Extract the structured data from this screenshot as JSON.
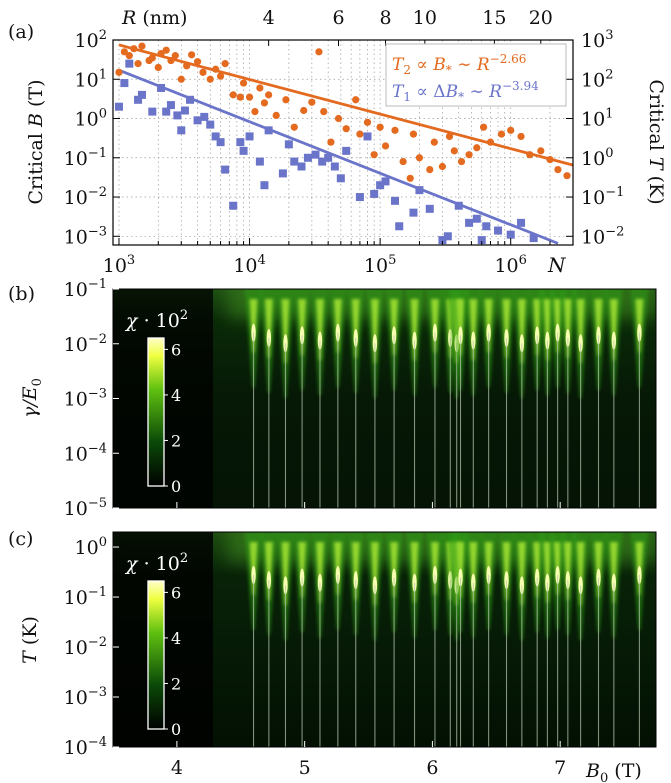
{
  "chart_data": [
    {
      "panel_label": "(a)",
      "type": "scatter",
      "x_scale": "log",
      "y_scale": "log",
      "xlabel": "N",
      "ylabel": "Critical B (T)",
      "y2label": "Critical T (K)",
      "top_axis_label": "R (nm)",
      "xlim": [
        900,
        3000000
      ],
      "ylim": [
        0.0006,
        100
      ],
      "y2lim": [
        0.006,
        1000
      ],
      "x_ticks": [
        {
          "value": 1000,
          "base": "10",
          "exp": "3"
        },
        {
          "value": 10000,
          "base": "10",
          "exp": "4"
        },
        {
          "value": 100000,
          "base": "10",
          "exp": "5"
        },
        {
          "value": 1000000,
          "base": "10",
          "exp": "6"
        }
      ],
      "y_ticks": [
        {
          "value": 0.001,
          "base": "10",
          "exp": "−3"
        },
        {
          "value": 0.01,
          "base": "10",
          "exp": "−2"
        },
        {
          "value": 0.1,
          "base": "10",
          "exp": "−1"
        },
        {
          "value": 1,
          "base": "10",
          "exp": "0"
        },
        {
          "value": 10,
          "base": "10",
          "exp": "1"
        },
        {
          "value": 100,
          "base": "10",
          "exp": "2"
        }
      ],
      "y2_ticks": [
        {
          "value": 0.01,
          "base": "10",
          "exp": "−2"
        },
        {
          "value": 0.1,
          "base": "10",
          "exp": "−1"
        },
        {
          "value": 1,
          "base": "10",
          "exp": "0"
        },
        {
          "value": 10,
          "base": "10",
          "exp": "1"
        },
        {
          "value": 100,
          "base": "10",
          "exp": "2"
        },
        {
          "value": 1000,
          "base": "10",
          "exp": "3"
        }
      ],
      "top_ticks": [
        {
          "label": "4",
          "n_value": 14000
        },
        {
          "label": "6",
          "n_value": 48000
        },
        {
          "label": "8",
          "n_value": 110000
        },
        {
          "label": "10",
          "n_value": 220000
        },
        {
          "label": "15",
          "n_value": 750000
        },
        {
          "label": "20",
          "n_value": 1700000
        }
      ],
      "grid": true,
      "legend_position": "top-right",
      "series": [
        {
          "name": "T2 ∝ B* ∼ R^−2.66",
          "legend": {
            "lhs": "T",
            "lhs_sub": "2",
            "mid": " ∝ B",
            "mid_sub": "*",
            "rhs": " ∼ R",
            "exp": "−2.66"
          },
          "color": "#e36a1f",
          "marker": "circle",
          "fit_line": {
            "x_start": 1000,
            "y_start": 75,
            "x_end": 3000000,
            "y_end": 0.065
          },
          "points": [
            [
              1000,
              15
            ],
            [
              1100,
              50
            ],
            [
              1200,
              40
            ],
            [
              1300,
              60
            ],
            [
              1400,
              25
            ],
            [
              1500,
              70
            ],
            [
              1700,
              30
            ],
            [
              1800,
              35
            ],
            [
              2000,
              20
            ],
            [
              2100,
              45
            ],
            [
              2300,
              55
            ],
            [
              2500,
              30
            ],
            [
              2700,
              40
            ],
            [
              3000,
              10
            ],
            [
              3300,
              22
            ],
            [
              3600,
              42
            ],
            [
              4000,
              28
            ],
            [
              4400,
              15
            ],
            [
              5000,
              10
            ],
            [
              5500,
              18
            ],
            [
              6000,
              12
            ],
            [
              6500,
              25
            ],
            [
              7500,
              4
            ],
            [
              8500,
              3.5
            ],
            [
              9000,
              8
            ],
            [
              10000,
              3.5
            ],
            [
              11000,
              1.5
            ],
            [
              12000,
              6
            ],
            [
              13000,
              2.5
            ],
            [
              14000,
              4
            ],
            [
              16000,
              1.2
            ],
            [
              19000,
              3
            ],
            [
              22000,
              0.6
            ],
            [
              26000,
              1.6
            ],
            [
              30000,
              2.6
            ],
            [
              34000,
              50
            ],
            [
              37000,
              1.5
            ],
            [
              42000,
              0.25
            ],
            [
              48000,
              1
            ],
            [
              55000,
              0.55
            ],
            [
              65000,
              3
            ],
            [
              70000,
              0.4
            ],
            [
              80000,
              0.8
            ],
            [
              90000,
              0.12
            ],
            [
              100000,
              0.6
            ],
            [
              110000,
              0.2
            ],
            [
              130000,
              0.5
            ],
            [
              150000,
              0.08
            ],
            [
              170000,
              0.03
            ],
            [
              180000,
              0.4
            ],
            [
              200000,
              0.1
            ],
            [
              240000,
              0.05
            ],
            [
              260000,
              0.25
            ],
            [
              300000,
              0.06
            ],
            [
              340000,
              0.35
            ],
            [
              370000,
              0.15
            ],
            [
              420000,
              0.08
            ],
            [
              480000,
              0.12
            ],
            [
              550000,
              0.18
            ],
            [
              620000,
              0.6
            ],
            [
              700000,
              0.25
            ],
            [
              850000,
              0.4
            ],
            [
              1000000,
              0.5
            ],
            [
              1200000,
              0.35
            ],
            [
              1400000,
              0.12
            ],
            [
              1700000,
              0.15
            ],
            [
              2000000,
              0.09
            ],
            [
              2300000,
              0.05
            ],
            [
              2700000,
              0.035
            ]
          ]
        },
        {
          "name": "T1 ∝ ΔB* ∼ R^−3.94",
          "legend": {
            "lhs": "T",
            "lhs_sub": "1",
            "mid": " ∝ ΔB",
            "mid_sub": "*",
            "rhs": " ∼ R",
            "exp": "−3.94"
          },
          "color": "#6a74c9",
          "marker": "square",
          "fit_line": {
            "x_start": 1000,
            "y_start": 17,
            "x_end": 2300000,
            "y_end": 0.00066
          },
          "points": [
            [
              1000,
              2
            ],
            [
              1100,
              8
            ],
            [
              1200,
              25
            ],
            [
              1400,
              3
            ],
            [
              1500,
              4
            ],
            [
              1800,
              1.5
            ],
            [
              2100,
              6
            ],
            [
              2300,
              1.5
            ],
            [
              2500,
              2.2
            ],
            [
              2800,
              1.2
            ],
            [
              3000,
              0.5
            ],
            [
              3200,
              1.6
            ],
            [
              3500,
              3
            ],
            [
              4000,
              0.9
            ],
            [
              4500,
              1.1
            ],
            [
              5000,
              0.7
            ],
            [
              5500,
              0.35
            ],
            [
              6000,
              0.25
            ],
            [
              6500,
              0.05
            ],
            [
              7500,
              0.006
            ],
            [
              8500,
              0.25
            ],
            [
              9000,
              0.15
            ],
            [
              10000,
              0.35
            ],
            [
              12000,
              0.08
            ],
            [
              13000,
              0.02
            ],
            [
              14000,
              0.5
            ],
            [
              18000,
              0.04
            ],
            [
              20000,
              0.22
            ],
            [
              22000,
              0.08
            ],
            [
              25000,
              0.06
            ],
            [
              28000,
              0.1
            ],
            [
              32000,
              0.12
            ],
            [
              36000,
              0.08
            ],
            [
              40000,
              0.1
            ],
            [
              45000,
              0.06
            ],
            [
              50000,
              0.03
            ],
            [
              55000,
              0.15
            ],
            [
              70000,
              0.01
            ],
            [
              80000,
              0.35
            ],
            [
              90000,
              0.012
            ],
            [
              100000,
              0.02
            ],
            [
              110000,
              0.025
            ],
            [
              130000,
              0.008
            ],
            [
              140000,
              0.0018
            ],
            [
              180000,
              0.004
            ],
            [
              200000,
              0.015
            ],
            [
              240000,
              0.005
            ],
            [
              300000,
              0.0008
            ],
            [
              330000,
              0.001
            ],
            [
              400000,
              0.006
            ],
            [
              480000,
              0.0022
            ],
            [
              550000,
              0.0028
            ],
            [
              600000,
              0.0008
            ],
            [
              650000,
              0.0018
            ],
            [
              800000,
              0.0014
            ],
            [
              1000000,
              0.0011
            ],
            [
              1200000,
              0.0022
            ],
            [
              1500000,
              0.0009
            ]
          ]
        }
      ]
    },
    {
      "panel_label": "(b)",
      "type": "heatmap",
      "y_scale": "log",
      "ylabel": "γ/E0",
      "ylabel_parts": {
        "base": "γ/E",
        "sub": "0"
      },
      "ylim": [
        1e-05,
        0.1
      ],
      "xlim": [
        3.5,
        7.75
      ],
      "y_ticks": [
        {
          "value": 1e-05,
          "base": "10",
          "exp": "−5"
        },
        {
          "value": 0.0001,
          "base": "10",
          "exp": "−4"
        },
        {
          "value": 0.001,
          "base": "10",
          "exp": "−3"
        },
        {
          "value": 0.01,
          "base": "10",
          "exp": "−2"
        },
        {
          "value": 0.1,
          "base": "10",
          "exp": "−1"
        }
      ],
      "colorbar": {
        "label_base": "χ · 10",
        "label_exp": "2",
        "ticks": [
          "0",
          "2",
          "4",
          "6"
        ],
        "min": 0,
        "max": 6.5,
        "colormap": [
          "#ffffff",
          "#ffff66",
          "#66cc00",
          "#003300",
          "#000000"
        ]
      },
      "resonance_fields": [
        4.6,
        4.72,
        4.85,
        4.98,
        5.12,
        5.26,
        5.4,
        5.55,
        5.7,
        5.86,
        6.02,
        6.14,
        6.19,
        6.22,
        6.32,
        6.44,
        6.58,
        6.7,
        6.82,
        6.9,
        6.98,
        7.06,
        7.16,
        7.3,
        7.42,
        7.62
      ],
      "resonance_onset": 4.4
    },
    {
      "panel_label": "(c)",
      "type": "heatmap",
      "y_scale": "log",
      "ylabel": "T (K)",
      "ylim": [
        0.0001,
        2
      ],
      "xlim": [
        3.5,
        7.75
      ],
      "xlabel": "B0 (T)",
      "xlabel_parts": {
        "base": "B",
        "sub": "0",
        "tail": " (T)"
      },
      "x_ticks": [
        "4",
        "5",
        "6",
        "7"
      ],
      "y_ticks": [
        {
          "value": 0.0001,
          "base": "10",
          "exp": "−4"
        },
        {
          "value": 0.001,
          "base": "10",
          "exp": "−3"
        },
        {
          "value": 0.01,
          "base": "10",
          "exp": "−2"
        },
        {
          "value": 0.1,
          "base": "10",
          "exp": "−1"
        },
        {
          "value": 1,
          "base": "10",
          "exp": "0"
        }
      ],
      "colorbar": {
        "label_base": "χ · 10",
        "label_exp": "2",
        "ticks": [
          "0",
          "2",
          "4",
          "6"
        ],
        "min": 0,
        "max": 6.5,
        "colormap": [
          "#ffffff",
          "#ffff66",
          "#66cc00",
          "#003300",
          "#000000"
        ]
      },
      "resonance_fields": [
        4.6,
        4.72,
        4.85,
        4.98,
        5.12,
        5.26,
        5.4,
        5.55,
        5.7,
        5.86,
        6.02,
        6.14,
        6.19,
        6.22,
        6.32,
        6.44,
        6.58,
        6.7,
        6.82,
        6.9,
        6.98,
        7.06,
        7.16,
        7.3,
        7.42,
        7.62
      ],
      "resonance_onset": 4.4
    }
  ]
}
